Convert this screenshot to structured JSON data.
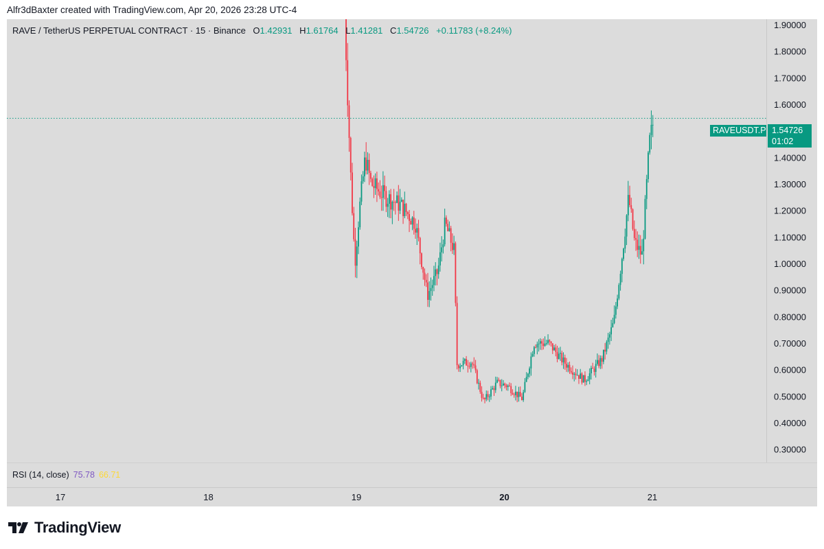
{
  "header": {
    "attribution": "Alfr3dBaxter created with TradingView.com, Apr 20, 2026 23:28 UTC-4"
  },
  "legend": {
    "symbol": "RAVE / TetherUS PERPETUAL CONTRACT · 15 · Binance",
    "open_label": "O",
    "open": "1.42931",
    "high_label": "H",
    "high": "1.61764",
    "low_label": "L",
    "low": "1.41281",
    "close_label": "C",
    "close": "1.54726",
    "change": "+0.11783 (+8.24%)"
  },
  "last_price": {
    "symbol_badge": "RAVEUSDT.P",
    "price": "1.54726",
    "countdown": "01:02"
  },
  "rsi": {
    "label": "RSI (14, close)",
    "value": "75.78",
    "ma_value": "66.71"
  },
  "time_axis": {
    "labels": [
      "17",
      "18",
      "19",
      "20",
      "21"
    ],
    "bold_label": "20"
  },
  "brand": {
    "name": "TradingView"
  },
  "colors": {
    "up": "#089981",
    "down": "#f23645",
    "rsi": "#7e57c2",
    "rsi_ma": "#fdd835",
    "pane_background": "#dcdcdc"
  },
  "chart_data": {
    "type": "candlestick",
    "title": "RAVE / TetherUS PERPETUAL CONTRACT · 15 · Binance",
    "interval": "15",
    "y_ticks": [
      "0.30000",
      "0.40000",
      "0.50000",
      "0.60000",
      "0.70000",
      "0.80000",
      "0.90000",
      "1.00000",
      "1.10000",
      "1.20000",
      "1.30000",
      "1.40000",
      "1.60000",
      "1.70000",
      "1.80000",
      "1.90000"
    ],
    "ylim": [
      0.3,
      1.95
    ],
    "x_ticks": [
      "17",
      "18",
      "19",
      "20",
      "21"
    ],
    "last_price": 1.54726,
    "grid": false,
    "series": [
      {
        "name": "RAVEUSDT.P",
        "anchors": [
          {
            "day": 18.92,
            "close": 1.95
          },
          {
            "day": 18.96,
            "close": 1.35
          },
          {
            "day": 18.99,
            "close": 1.0
          },
          {
            "day": 19.02,
            "close": 1.2
          },
          {
            "day": 19.06,
            "close": 1.4
          },
          {
            "day": 19.1,
            "close": 1.3
          },
          {
            "day": 19.2,
            "close": 1.25
          },
          {
            "day": 19.3,
            "close": 1.22
          },
          {
            "day": 19.4,
            "close": 1.15
          },
          {
            "day": 19.48,
            "close": 0.88
          },
          {
            "day": 19.55,
            "close": 0.97
          },
          {
            "day": 19.6,
            "close": 1.15
          },
          {
            "day": 19.66,
            "close": 1.05
          },
          {
            "day": 19.68,
            "close": 0.62
          },
          {
            "day": 19.78,
            "close": 0.63
          },
          {
            "day": 19.86,
            "close": 0.48
          },
          {
            "day": 19.95,
            "close": 0.55
          },
          {
            "day": 20.02,
            "close": 0.54
          },
          {
            "day": 20.12,
            "close": 0.49
          },
          {
            "day": 20.2,
            "close": 0.7
          },
          {
            "day": 20.3,
            "close": 0.7
          },
          {
            "day": 20.4,
            "close": 0.63
          },
          {
            "day": 20.54,
            "close": 0.56
          },
          {
            "day": 20.66,
            "close": 0.64
          },
          {
            "day": 20.74,
            "close": 0.78
          },
          {
            "day": 20.8,
            "close": 1.05
          },
          {
            "day": 20.84,
            "close": 1.25
          },
          {
            "day": 20.88,
            "close": 1.08
          },
          {
            "day": 20.93,
            "close": 1.03
          },
          {
            "day": 20.98,
            "close": 1.45
          },
          {
            "day": 21.01,
            "close": 1.547
          }
        ]
      }
    ]
  }
}
